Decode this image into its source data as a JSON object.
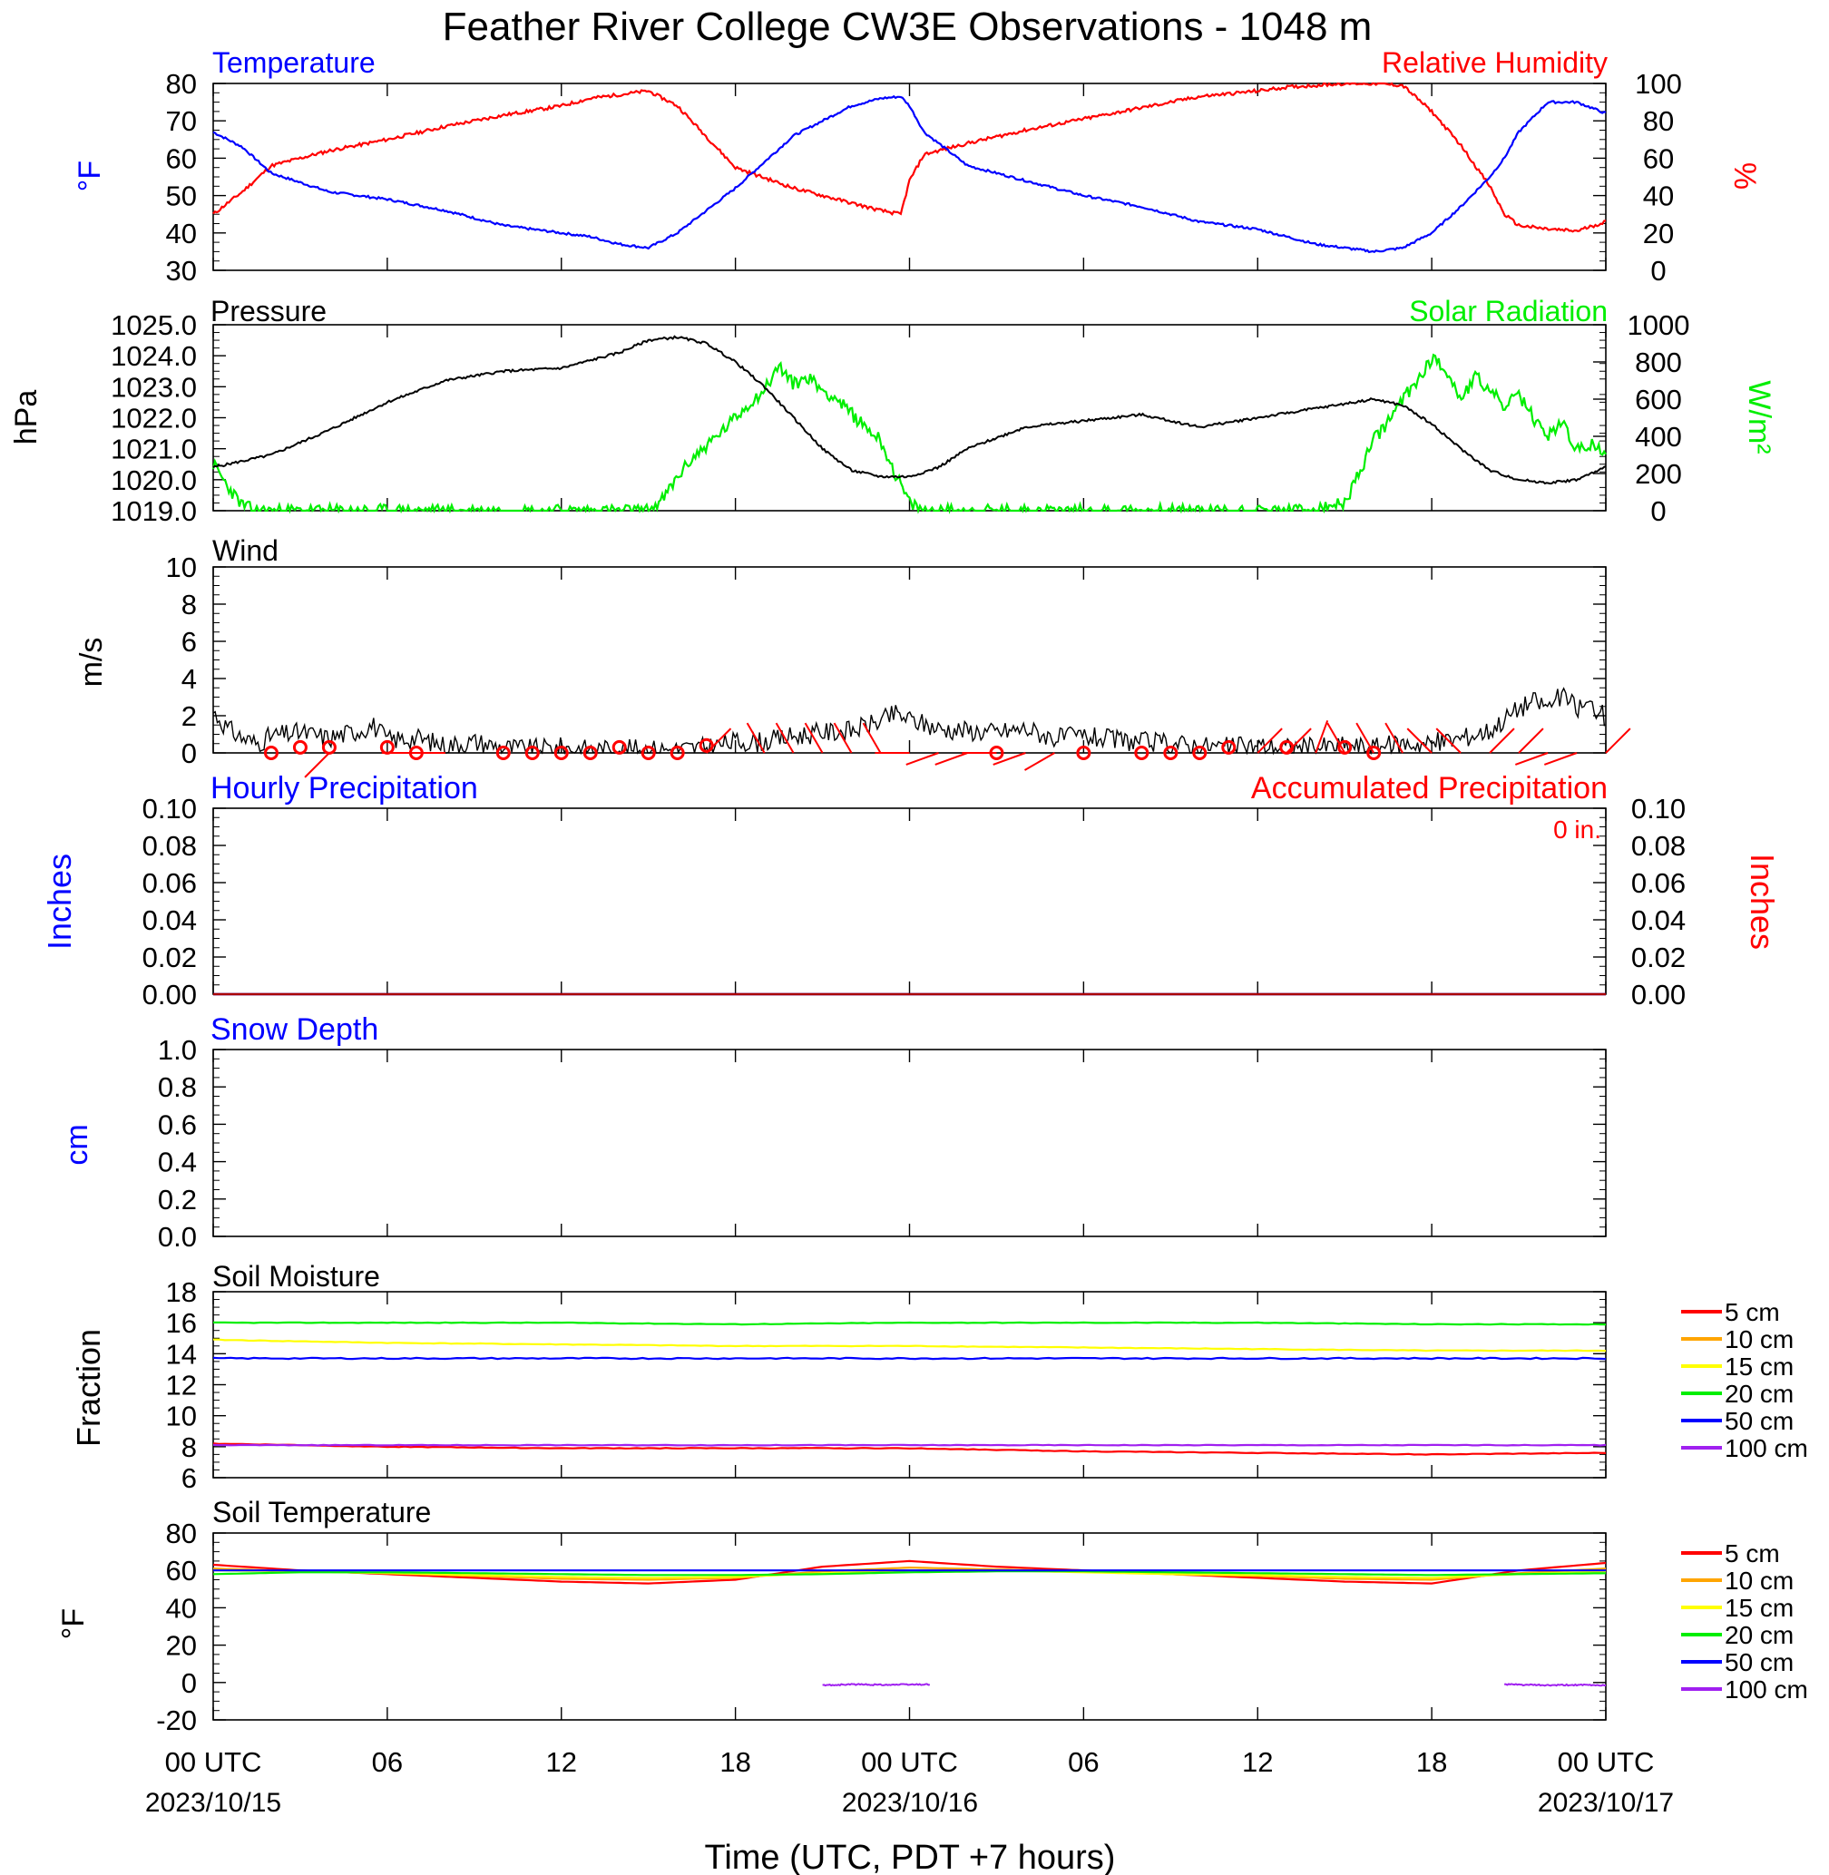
{
  "figure": {
    "title": "Feather River College CW3E Observations - 1048 m",
    "xlabel": "Time (UTC, PDT +7 hours)",
    "time_ticks": [
      "00 UTC",
      "06",
      "12",
      "18",
      "00 UTC",
      "06",
      "12",
      "18",
      "00 UTC"
    ],
    "date_labels": [
      "2023/10/15",
      "2023/10/16",
      "2023/10/17"
    ]
  },
  "colors": {
    "blue": "#0000ff",
    "red": "#ff0000",
    "green": "#00ee00",
    "black": "#000000",
    "orange": "#ffa500",
    "yellow": "#ffff00",
    "purple": "#a020f0"
  },
  "chart_data": [
    {
      "type": "line",
      "left_title": "Temperature",
      "right_title": "Relative Humidity",
      "ylabel": "°F",
      "y2label": "%",
      "ylim": [
        30,
        80
      ],
      "y2lim": [
        0,
        100
      ],
      "yticks": [
        "80",
        "70",
        "60",
        "50",
        "40",
        "30"
      ],
      "y2ticks": [
        "100",
        "80",
        "60",
        "40",
        "20",
        "0"
      ],
      "x": [
        0,
        1,
        2,
        4,
        6,
        8,
        10,
        12,
        13,
        14,
        15,
        16,
        18,
        20,
        22,
        23,
        23.7,
        24,
        24.5,
        26,
        28,
        30,
        32,
        34,
        36,
        37,
        38,
        39,
        40,
        41,
        42,
        43,
        44,
        44.5,
        45,
        46,
        47,
        48
      ],
      "series": [
        {
          "name": "Temperature",
          "values": [
            67,
            63,
            56,
            51,
            49,
            46,
            42,
            40,
            39,
            37,
            36,
            40,
            52,
            66,
            74,
            76,
            76.5,
            74,
            67,
            58,
            54,
            50,
            47,
            43,
            41,
            39,
            37,
            36,
            35,
            36,
            40,
            47,
            55,
            60,
            67,
            75,
            75,
            72
          ]
        },
        {
          "name": "Relative Humidity",
          "values": [
            30,
            42,
            56,
            64,
            70,
            77,
            83,
            88,
            92,
            94,
            96,
            88,
            55,
            44,
            36,
            32,
            30,
            48,
            62,
            68,
            75,
            81,
            87,
            93,
            96,
            98,
            99,
            100,
            100,
            99,
            85,
            67,
            45,
            30,
            24,
            22,
            21,
            26
          ]
        }
      ]
    },
    {
      "type": "line",
      "left_title": "Pressure",
      "right_title": "Solar Radiation",
      "ylabel": "hPa",
      "y2label": "W/m²",
      "ylim": [
        1019.0,
        1025.0
      ],
      "y2lim": [
        0,
        1000
      ],
      "yticks": [
        "1025.0",
        "1024.0",
        "1023.0",
        "1022.0",
        "1021.0",
        "1020.0",
        "1019.0"
      ],
      "y2ticks": [
        "1000",
        "800",
        "600",
        "400",
        "200",
        "0"
      ],
      "series": [
        {
          "name": "Pressure",
          "x": [
            0,
            2,
            4,
            6,
            8,
            10,
            12,
            14,
            15,
            16,
            17,
            18,
            19,
            20,
            21,
            22,
            23,
            24,
            25,
            26,
            28,
            30,
            32,
            34,
            36,
            38,
            40,
            41,
            42,
            43,
            44,
            45,
            46,
            47,
            48
          ],
          "values": [
            1020.4,
            1020.8,
            1021.6,
            1022.5,
            1023.2,
            1023.5,
            1023.6,
            1024.1,
            1024.5,
            1024.6,
            1024.4,
            1023.8,
            1023.0,
            1022.0,
            1021.0,
            1020.3,
            1020.1,
            1020.1,
            1020.4,
            1021.0,
            1021.7,
            1021.9,
            1022.1,
            1021.7,
            1022.0,
            1022.3,
            1022.6,
            1022.4,
            1021.8,
            1021.0,
            1020.3,
            1020.0,
            1019.9,
            1020.0,
            1020.4
          ]
        },
        {
          "name": "Solar Radiation",
          "x": [
            0,
            0.5,
            1,
            1.5,
            15,
            15.5,
            16,
            16.5,
            17,
            17.5,
            18,
            18.5,
            19,
            19.5,
            20,
            20.5,
            21,
            21.5,
            22,
            22.5,
            23,
            23.5,
            24,
            24.5,
            26,
            38,
            39,
            39.5,
            40,
            40.5,
            41,
            41.5,
            42,
            42.5,
            43,
            43.5,
            44,
            44.5,
            45,
            45.5,
            46,
            46.5,
            47,
            47.5,
            48
          ],
          "values": [
            250,
            130,
            30,
            0,
            0,
            60,
            180,
            280,
            350,
            420,
            500,
            580,
            650,
            780,
            680,
            720,
            650,
            600,
            520,
            450,
            380,
            200,
            40,
            0,
            0,
            0,
            40,
            200,
            380,
            480,
            600,
            700,
            820,
            760,
            600,
            720,
            650,
            560,
            620,
            500,
            400,
            480,
            320,
            360,
            290
          ]
        }
      ]
    },
    {
      "type": "line",
      "left_title": "Wind",
      "ylabel": "m/s",
      "ylim": [
        0,
        10
      ],
      "yticks": [
        "10",
        "8",
        "6",
        "4",
        "2",
        "0"
      ],
      "series": [
        {
          "name": "Wind speed",
          "x": [
            0,
            0.5,
            1,
            1.5,
            2,
            3,
            4,
            5,
            5.5,
            6,
            7,
            8,
            9,
            10,
            11,
            12,
            13,
            14,
            15,
            16,
            17,
            18,
            19,
            20,
            21,
            22,
            23,
            23.5,
            24,
            25,
            26,
            27,
            28,
            29,
            30,
            31,
            32,
            33,
            34,
            35,
            36,
            37,
            38,
            39,
            40,
            41,
            42,
            43,
            44,
            45,
            45.5,
            46,
            46.5,
            47,
            47.5,
            48
          ],
          "values": [
            2.2,
            1.3,
            0.8,
            0.5,
            0.9,
            1.1,
            0.8,
            1.2,
            1.5,
            0.7,
            0.8,
            0.4,
            0.6,
            0.3,
            0.2,
            0.3,
            0.2,
            0.2,
            0.2,
            0.2,
            0.3,
            0.6,
            0.6,
            0.9,
            1.1,
            1.2,
            1.7,
            2.1,
            1.8,
            1.3,
            1.2,
            1.1,
            1.3,
            0.8,
            0.9,
            0.7,
            0.6,
            0.5,
            0.4,
            0.3,
            0.4,
            0.3,
            0.3,
            0.4,
            0.3,
            0.5,
            0.5,
            0.8,
            1.2,
            2.4,
            2.8,
            2.5,
            3.1,
            2.4,
            2.6,
            1.9
          ]
        },
        {
          "name": "Calm",
          "x": [
            2,
            3,
            4,
            6,
            7,
            10,
            11,
            12,
            13,
            14,
            15,
            16,
            17,
            27,
            30,
            32,
            33,
            34,
            35,
            37,
            39,
            40
          ],
          "values": [
            0,
            0.3,
            0.3,
            0.3,
            0,
            0,
            0,
            0,
            0,
            0.3,
            0,
            0,
            0.4,
            0,
            0,
            0,
            0,
            0,
            0.3,
            0.3,
            0.3,
            0
          ]
        },
        {
          "name": "Wind direction",
          "x": [
            4,
            7,
            8,
            17,
            19,
            20,
            21,
            22,
            23,
            24,
            25,
            26,
            27,
            28,
            29,
            36,
            37,
            38,
            39,
            40,
            41,
            42,
            43,
            44,
            45,
            46,
            47,
            48
          ],
          "values": [
            225,
            270,
            270,
            45,
            330,
            330,
            330,
            330,
            330,
            270,
            250,
            250,
            270,
            250,
            240,
            45,
            45,
            20,
            330,
            330,
            330,
            315,
            315,
            45,
            45,
            250,
            250,
            45
          ]
        }
      ]
    },
    {
      "type": "line",
      "left_title": "Hourly Precipitation",
      "right_title": "Accumulated Precipitation",
      "annotation": "0 in.",
      "ylabel": "Inches",
      "y2label": "Inches",
      "ylim": [
        0.0,
        0.1
      ],
      "y2lim": [
        0.0,
        0.1
      ],
      "yticks": [
        "0.10",
        "0.08",
        "0.06",
        "0.04",
        "0.02",
        "0.00"
      ],
      "y2ticks": [
        "0.10",
        "0.08",
        "0.06",
        "0.04",
        "0.02",
        "0.00"
      ],
      "series": [
        {
          "name": "Hourly Precipitation",
          "x": [
            0,
            48
          ],
          "values": [
            0,
            0
          ]
        },
        {
          "name": "Accumulated Precipitation",
          "x": [
            0,
            48
          ],
          "values": [
            0,
            0
          ]
        }
      ]
    },
    {
      "type": "line",
      "left_title": "Snow Depth",
      "ylabel": "cm",
      "ylim": [
        0.0,
        1.0
      ],
      "yticks": [
        "1.0",
        "0.8",
        "0.6",
        "0.4",
        "0.2",
        "0.0"
      ],
      "series": []
    },
    {
      "type": "line",
      "left_title": "Soil Moisture",
      "ylabel": "Fraction",
      "ylim": [
        6,
        18
      ],
      "yticks": [
        "18",
        "16",
        "14",
        "12",
        "10",
        "8",
        "6"
      ],
      "legend": [
        "5 cm",
        "10 cm",
        "15 cm",
        "20 cm",
        "50 cm",
        "100 cm"
      ],
      "x": [
        0,
        6,
        12,
        18,
        24,
        30,
        36,
        42,
        48
      ],
      "series": [
        {
          "name": "5 cm",
          "values": [
            8.2,
            8.0,
            7.9,
            7.9,
            7.9,
            7.7,
            7.6,
            7.5,
            7.6
          ]
        },
        {
          "name": "15 cm",
          "values": [
            14.9,
            14.7,
            14.6,
            14.5,
            14.5,
            14.4,
            14.3,
            14.2,
            14.2
          ]
        },
        {
          "name": "20 cm",
          "values": [
            16.0,
            16.0,
            16.0,
            15.9,
            16.0,
            16.0,
            16.0,
            15.9,
            15.9
          ]
        },
        {
          "name": "50 cm",
          "values": [
            13.7,
            13.7,
            13.7,
            13.7,
            13.7,
            13.7,
            13.7,
            13.7,
            13.7
          ]
        },
        {
          "name": "100 cm",
          "values": [
            8.1,
            8.1,
            8.1,
            8.1,
            8.1,
            8.1,
            8.1,
            8.1,
            8.1
          ]
        }
      ]
    },
    {
      "type": "line",
      "left_title": "Soil Temperature",
      "ylabel": "°F",
      "ylim": [
        -20,
        80
      ],
      "yticks": [
        "80",
        "60",
        "40",
        "20",
        "0",
        "-20"
      ],
      "legend": [
        "5 cm",
        "10 cm",
        "15 cm",
        "20 cm",
        "50 cm",
        "100 cm"
      ],
      "x": [
        0,
        3,
        6,
        9,
        12,
        15,
        18,
        21,
        24,
        27,
        30,
        33,
        36,
        39,
        42,
        45,
        48
      ],
      "series": [
        {
          "name": "5 cm",
          "values": [
            63,
            60,
            58,
            56,
            54,
            53,
            55,
            62,
            65,
            62,
            60,
            58,
            56,
            54,
            53,
            60,
            64
          ]
        },
        {
          "name": "10 cm",
          "values": [
            61,
            59.5,
            58.5,
            57,
            55.5,
            55,
            56,
            59.5,
            61.5,
            60.5,
            59.5,
            58,
            57,
            55.5,
            55,
            58.5,
            61
          ]
        },
        {
          "name": "15 cm",
          "values": [
            60,
            59.5,
            58.5,
            57.5,
            56.5,
            56,
            56.5,
            58.5,
            60,
            60,
            59,
            58,
            57.5,
            56.5,
            56,
            58,
            59.5
          ]
        },
        {
          "name": "20 cm",
          "values": [
            58,
            59,
            59,
            58.5,
            58,
            57.5,
            57.5,
            58,
            59,
            59.5,
            59.5,
            59,
            58.5,
            58,
            57.5,
            58,
            58.5
          ]
        },
        {
          "name": "50 cm",
          "values": [
            60,
            60,
            60,
            60,
            60,
            60,
            60,
            60,
            60,
            60,
            60,
            60,
            60,
            60,
            60,
            60,
            60
          ]
        },
        {
          "name": "100 cm",
          "segments": [
            {
              "x": [
                21,
                22,
                23,
                24.7
              ],
              "values": [
                -1.5,
                -1,
                -1.2,
                -1
              ]
            },
            {
              "x": [
                44.5,
                46,
                47,
                48
              ],
              "values": [
                -1,
                -1.5,
                -1.3,
                -1.5
              ]
            }
          ]
        }
      ]
    }
  ]
}
